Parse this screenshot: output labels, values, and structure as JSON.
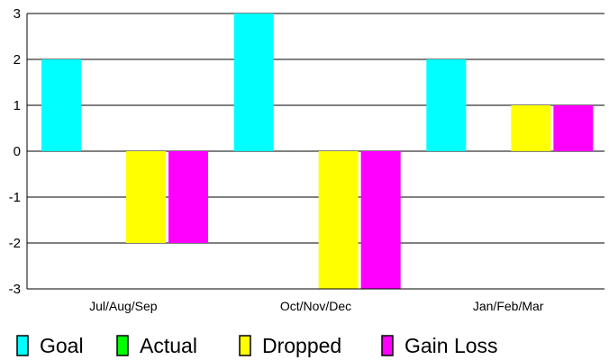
{
  "chart_data": {
    "type": "bar",
    "title": "",
    "xlabel": "",
    "ylabel": "",
    "categories": [
      "Jul/Aug/Sep",
      "Oct/Nov/Dec",
      "Jan/Feb/Mar"
    ],
    "ylim": [
      -3,
      3
    ],
    "yticks": [
      -3,
      -2,
      -1,
      0,
      1,
      2,
      3
    ],
    "grid": true,
    "legend_position": "bottom",
    "series": [
      {
        "name": "Goal",
        "color": "#00ffff",
        "values": [
          2,
          3,
          2
        ]
      },
      {
        "name": "Actual",
        "color": "#00ff00",
        "values": [
          0,
          0,
          0
        ]
      },
      {
        "name": "Dropped",
        "color": "#ffff00",
        "values": [
          -2,
          -3,
          1
        ]
      },
      {
        "name": "Gain Loss",
        "color": "#ff00ff",
        "values": [
          -2,
          -3,
          1
        ]
      }
    ]
  }
}
